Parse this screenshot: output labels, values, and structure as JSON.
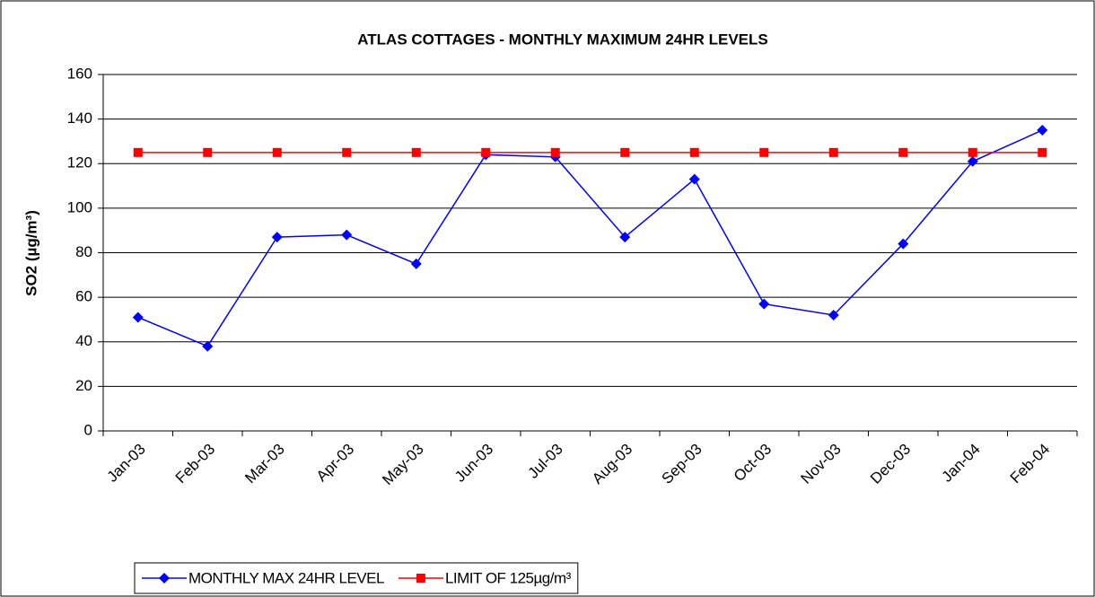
{
  "chart_data": {
    "type": "line",
    "title": "ATLAS COTTAGES - MONTHLY MAXIMUM 24HR LEVELS",
    "y_label": "SO2 (µg/m³)",
    "categories": [
      "Jan-03",
      "Feb-03",
      "Mar-03",
      "Apr-03",
      "May-03",
      "Jun-03",
      "Jul-03",
      "Aug-03",
      "Sep-03",
      "Oct-03",
      "Nov-03",
      "Dec-03",
      "Jan-04",
      "Feb-04"
    ],
    "series": [
      {
        "name": "MONTHLY MAX 24HR LEVEL",
        "color": "#0000ff",
        "marker": "diamond",
        "values": [
          51,
          38,
          87,
          88,
          75,
          124,
          123,
          87,
          113,
          57,
          52,
          84,
          121,
          135
        ]
      },
      {
        "name": "LIMIT OF 125µg/m³",
        "color": "#ff0000",
        "marker": "square",
        "values": [
          125,
          125,
          125,
          125,
          125,
          125,
          125,
          125,
          125,
          125,
          125,
          125,
          125,
          125
        ]
      }
    ],
    "ylim": [
      0,
      160
    ],
    "yticks": [
      0,
      20,
      40,
      60,
      80,
      100,
      120,
      140,
      160
    ],
    "grid": true,
    "legend": "bottom"
  }
}
